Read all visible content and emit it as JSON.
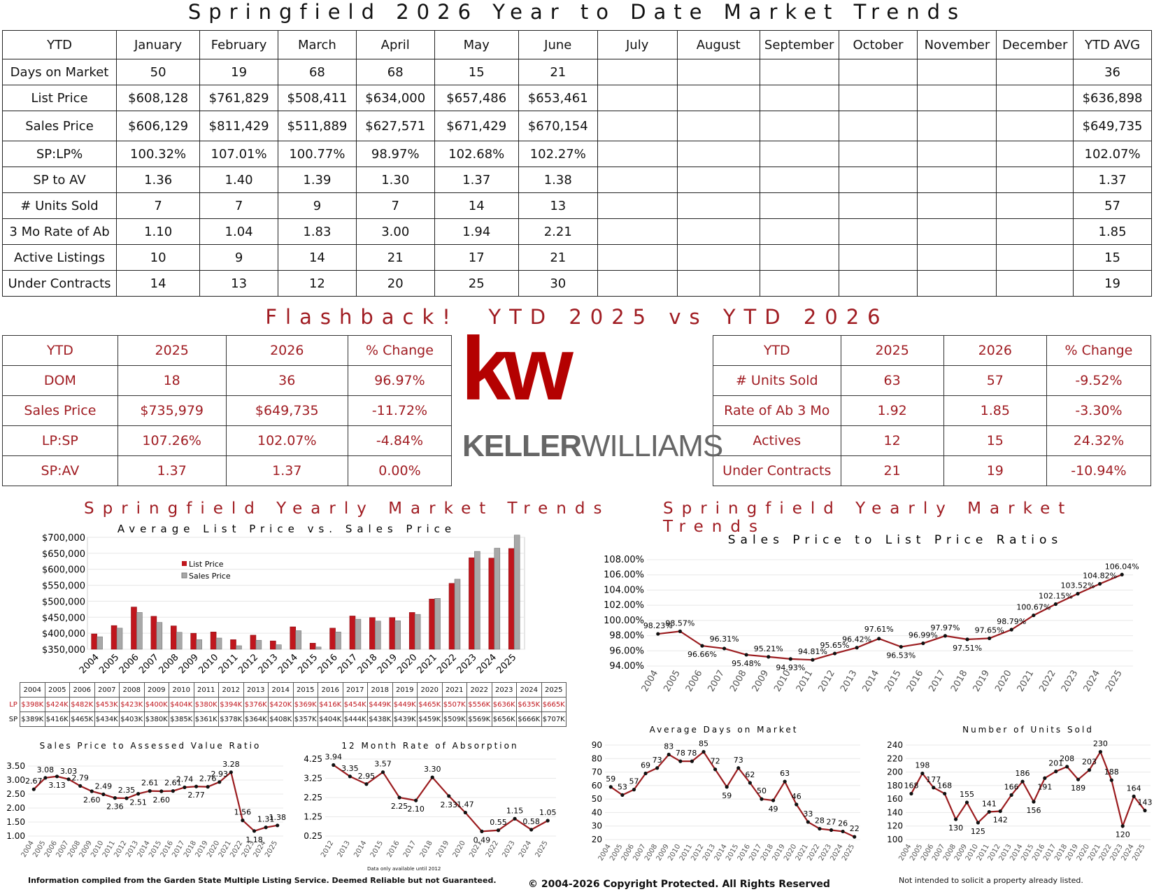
{
  "title": "Springfield 2026 Year to Date Market Trends",
  "ytd_table": {
    "headers": [
      "YTD",
      "January",
      "February",
      "March",
      "April",
      "May",
      "June",
      "July",
      "August",
      "September",
      "October",
      "November",
      "December",
      "YTD AVG"
    ],
    "rows": [
      [
        "Days on Market",
        "50",
        "19",
        "68",
        "68",
        "15",
        "21",
        "",
        "",
        "",
        "",
        "",
        "",
        "36"
      ],
      [
        "List Price",
        "$608,128",
        "$761,829",
        "$508,411",
        "$634,000",
        "$657,486",
        "$653,461",
        "",
        "",
        "",
        "",
        "",
        "",
        "$636,898"
      ],
      [
        "Sales Price",
        "$606,129",
        "$811,429",
        "$511,889",
        "$627,571",
        "$671,429",
        "$670,154",
        "",
        "",
        "",
        "",
        "",
        "",
        "$649,735"
      ],
      [
        "SP:LP%",
        "100.32%",
        "107.01%",
        "100.77%",
        "98.97%",
        "102.68%",
        "102.27%",
        "",
        "",
        "",
        "",
        "",
        "",
        "102.07%"
      ],
      [
        "SP to AV",
        "1.36",
        "1.40",
        "1.39",
        "1.30",
        "1.37",
        "1.38",
        "",
        "",
        "",
        "",
        "",
        "",
        "1.37"
      ],
      [
        "# Units Sold",
        "7",
        "7",
        "9",
        "7",
        "14",
        "13",
        "",
        "",
        "",
        "",
        "",
        "",
        "57"
      ],
      [
        "3 Mo Rate of Ab",
        "1.10",
        "1.04",
        "1.83",
        "3.00",
        "1.94",
        "2.21",
        "",
        "",
        "",
        "",
        "",
        "",
        "1.85"
      ],
      [
        "Active Listings",
        "10",
        "9",
        "14",
        "21",
        "17",
        "21",
        "",
        "",
        "",
        "",
        "",
        "",
        "15"
      ],
      [
        "Under Contracts",
        "14",
        "13",
        "12",
        "20",
        "25",
        "30",
        "",
        "",
        "",
        "",
        "",
        "",
        "19"
      ]
    ]
  },
  "flashback_title": "Flashback!  YTD 2025 vs YTD 2026",
  "flashback_left": {
    "headers": [
      "YTD",
      "2025",
      "2026",
      "% Change"
    ],
    "rows": [
      [
        "DOM",
        "18",
        "36",
        "96.97%"
      ],
      [
        "Sales Price",
        "$735,979",
        "$649,735",
        "-11.72%"
      ],
      [
        "LP:SP",
        "107.26%",
        "102.07%",
        "-4.84%"
      ],
      [
        "SP:AV",
        "1.37",
        "1.37",
        "0.00%"
      ]
    ]
  },
  "flashback_right": {
    "headers": [
      "YTD",
      "2025",
      "2026",
      "% Change"
    ],
    "rows": [
      [
        "# Units Sold",
        "63",
        "57",
        "-9.52%"
      ],
      [
        "Rate of Ab 3 Mo",
        "1.92",
        "1.85",
        "-3.30%"
      ],
      [
        "Actives",
        "12",
        "15",
        "24.32%"
      ],
      [
        "Under Contracts",
        "21",
        "19",
        "-10.94%"
      ]
    ]
  },
  "logo": {
    "mark": "kw",
    "wordmark_a": "KELLER",
    "wordmark_b": "WILLIAMS",
    "color": "#b40101"
  },
  "left_section_title": "Springfield Yearly Market Trends",
  "right_section_title": "Springfield Yearly Market Trends",
  "lpsp_table": {
    "years": [
      "2004",
      "2005",
      "2006",
      "2007",
      "2008",
      "2009",
      "2010",
      "2011",
      "2012",
      "2013",
      "2014",
      "2015",
      "2016",
      "2017",
      "2018",
      "2019",
      "2020",
      "2021",
      "2022",
      "2023",
      "2024",
      "2025"
    ],
    "lp_label": "LP",
    "sp_label": "SP",
    "lp": [
      "$398K",
      "$424K",
      "$482K",
      "$453K",
      "$423K",
      "$400K",
      "$404K",
      "$380K",
      "$394K",
      "$376K",
      "$420K",
      "$369K",
      "$416K",
      "$454K",
      "$449K",
      "$449K",
      "$465K",
      "$507K",
      "$556K",
      "$636K",
      "$635K",
      "$665K"
    ],
    "sp": [
      "$389K",
      "$416K",
      "$465K",
      "$434K",
      "$403K",
      "$380K",
      "$385K",
      "$361K",
      "$378K",
      "$364K",
      "$408K",
      "$357K",
      "$404K",
      "$444K",
      "$438K",
      "$439K",
      "$459K",
      "$509K",
      "$569K",
      "$656K",
      "$666K",
      "$707K"
    ]
  },
  "chart_data": [
    {
      "id": "lp_vs_sp",
      "type": "bar",
      "title": "Average List Price vs. Sales Price",
      "categories": [
        "2004",
        "2005",
        "2006",
        "2007",
        "2008",
        "2009",
        "2010",
        "2011",
        "2012",
        "2013",
        "2014",
        "2015",
        "2016",
        "2017",
        "2018",
        "2019",
        "2020",
        "2021",
        "2022",
        "2023",
        "2024",
        "2025"
      ],
      "series": [
        {
          "name": "List Price",
          "color": "#c0161d",
          "values": [
            398,
            424,
            482,
            453,
            423,
            400,
            404,
            380,
            394,
            376,
            420,
            369,
            416,
            454,
            449,
            449,
            465,
            507,
            556,
            636,
            635,
            665
          ]
        },
        {
          "name": "Sales Price",
          "color": "#a8a8a8",
          "values": [
            389,
            416,
            465,
            434,
            403,
            380,
            385,
            361,
            378,
            364,
            408,
            357,
            404,
            444,
            438,
            439,
            459,
            509,
            569,
            656,
            666,
            707
          ]
        }
      ],
      "ylim": [
        350,
        700
      ],
      "yticks": [
        "$350,000",
        "$400,000",
        "$450,000",
        "$500,000",
        "$550,000",
        "$600,000",
        "$650,000",
        "$700,000"
      ],
      "legend": "top-left"
    },
    {
      "id": "sp_lp_ratio",
      "type": "line",
      "title": "Sales Price to List Price Ratios",
      "x": [
        "2004",
        "2005",
        "2006",
        "2007",
        "2008",
        "2009",
        "2010",
        "2011",
        "2012",
        "2013",
        "2014",
        "2015",
        "2016",
        "2017",
        "2018",
        "2019",
        "2020",
        "2021",
        "2022",
        "2023",
        "2024",
        "2025"
      ],
      "values": [
        98.23,
        98.57,
        96.66,
        96.31,
        95.48,
        95.21,
        94.93,
        94.81,
        95.65,
        96.42,
        97.61,
        96.53,
        96.99,
        97.97,
        97.51,
        97.65,
        98.79,
        100.67,
        102.15,
        103.52,
        104.82,
        106.04
      ],
      "labels": [
        "98.23%",
        "98.57%",
        "96.66%",
        "96.31%",
        "95.48%",
        "95.21%",
        "94.93%",
        "94.81%",
        "95.65%",
        "96.42%",
        "97.61%",
        "96.53%",
        "96.99%",
        "97.97%",
        "97.51%",
        "97.65%",
        "98.79%",
        "100.67%",
        "102.15%",
        "103.52%",
        "104.82%",
        "106.04%"
      ],
      "ylim": [
        94,
        108
      ],
      "yticks": [
        "94.00%",
        "96.00%",
        "98.00%",
        "100.00%",
        "102.00%",
        "104.00%",
        "106.00%",
        "108.00%"
      ]
    },
    {
      "id": "sp_av_ratio",
      "type": "line",
      "title": "Sales Price to Assessed Value Ratio",
      "x": [
        "2004",
        "2005",
        "2006",
        "2007",
        "2008",
        "2009",
        "2010",
        "2011",
        "2012",
        "2013",
        "2014",
        "2015",
        "2016",
        "2017",
        "2018",
        "2019",
        "2020",
        "2021",
        "2022",
        "2023",
        "2024",
        "2025"
      ],
      "values": [
        2.67,
        3.08,
        3.13,
        3.03,
        2.79,
        2.6,
        2.49,
        2.36,
        2.35,
        2.51,
        2.61,
        2.6,
        2.61,
        2.74,
        2.77,
        2.76,
        2.93,
        3.28,
        1.56,
        1.18,
        1.31,
        1.38
      ],
      "labels": [
        "2.67",
        "3.08",
        "3.13",
        "3.03",
        "2.79",
        "2.60",
        "2.49",
        "2.36",
        "2.35",
        "2.51",
        "2.61",
        "2.60",
        "2.61",
        "2.74",
        "2.77",
        "2.76",
        "2.93",
        "3.28",
        "1.56",
        "1.18",
        "1.31",
        "1.38"
      ],
      "ylim": [
        1.0,
        3.5
      ],
      "yticks": [
        "1.00",
        "1.50",
        "2.00",
        "2.50",
        "3.00",
        "3.50"
      ]
    },
    {
      "id": "absorption",
      "type": "line",
      "title": "12 Month Rate of Absorption",
      "x": [
        "2012",
        "2013",
        "2014",
        "2015",
        "2016",
        "2017",
        "2018",
        "2019",
        "2020",
        "2021",
        "2022",
        "2023",
        "2024",
        "2025"
      ],
      "values": [
        3.94,
        3.35,
        2.95,
        3.57,
        2.25,
        2.1,
        3.3,
        2.33,
        1.47,
        0.49,
        0.55,
        1.15,
        0.58,
        1.05
      ],
      "labels": [
        "3.94",
        "3.35",
        "2.95",
        "3.57",
        "2.25",
        "2.10",
        "3.30",
        "2.33",
        "1.47",
        "0.49",
        "0.55",
        "1.15",
        "0.58",
        "1.05"
      ],
      "ylim": [
        0.25,
        4.25
      ],
      "yticks": [
        "0.25",
        "1.25",
        "2.25",
        "3.25",
        "4.25"
      ],
      "note": "Data only available until 2012"
    },
    {
      "id": "dom",
      "type": "line",
      "title": "Average Days on Market",
      "x": [
        "2004",
        "2005",
        "2006",
        "2007",
        "2008",
        "2009",
        "2010",
        "2011",
        "2012",
        "2013",
        "2014",
        "2015",
        "2016",
        "2017",
        "2018",
        "2019",
        "2020",
        "2021",
        "2022",
        "2023",
        "2024",
        "2025"
      ],
      "values": [
        59,
        53,
        57,
        69,
        73,
        83,
        78,
        78,
        85,
        72,
        59,
        73,
        62,
        50,
        49,
        63,
        46,
        33,
        28,
        27,
        26,
        22
      ],
      "labels": [
        "59",
        "53",
        "57",
        "69",
        "73",
        "83",
        "78",
        "78",
        "85",
        "72",
        "59",
        "73",
        "62",
        "50",
        "49",
        "63",
        "46",
        "33",
        "28",
        "27",
        "26",
        "22"
      ],
      "ylim": [
        20,
        90
      ],
      "yticks": [
        "20",
        "30",
        "40",
        "50",
        "60",
        "70",
        "80",
        "90"
      ]
    },
    {
      "id": "units_sold",
      "type": "line",
      "title": "Number of Units Sold",
      "x": [
        "2004",
        "2005",
        "2006",
        "2007",
        "2008",
        "2009",
        "2010",
        "2011",
        "2012",
        "2013",
        "2014",
        "2015",
        "2016",
        "2017",
        "2018",
        "2019",
        "2020",
        "2021",
        "2022",
        "2023",
        "2024",
        "2025"
      ],
      "values": [
        168,
        198,
        177,
        168,
        130,
        155,
        125,
        141,
        142,
        166,
        186,
        156,
        191,
        201,
        208,
        189,
        203,
        230,
        188,
        120,
        164,
        143
      ],
      "labels": [
        "168",
        "198",
        "177",
        "168",
        "130",
        "155",
        "125",
        "141",
        "142",
        "166",
        "186",
        "156",
        "191",
        "201",
        "208",
        "189",
        "203",
        "230",
        "188",
        "120",
        "164",
        "143"
      ],
      "ylim": [
        100,
        240
      ],
      "yticks": [
        "100",
        "120",
        "140",
        "160",
        "180",
        "200",
        "220",
        "240"
      ]
    }
  ],
  "footer": {
    "left": "Information compiled from the Garden State Multiple Listing Service.  Deemed Reliable but not Guaranteed.",
    "center": "© 2004-2026 Copyright Protected.  All Rights Reserved",
    "right": "Not intended to solicit a property already listed."
  }
}
